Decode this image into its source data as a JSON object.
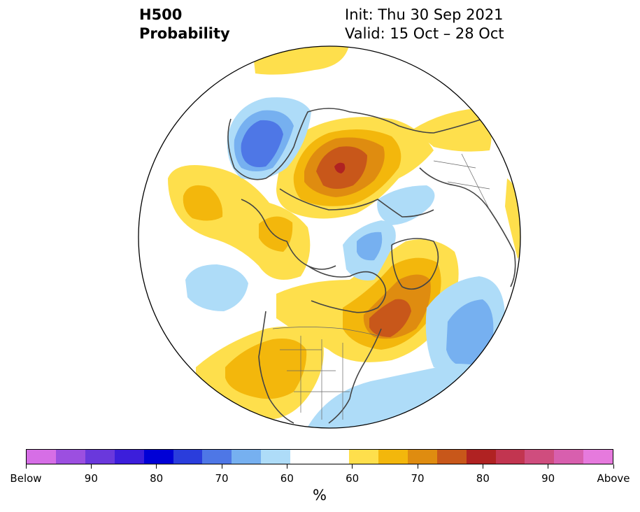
{
  "title": {
    "line1": "H500",
    "line2": "Probability",
    "init": "Init: Thu 30 Sep 2021",
    "valid": "Valid: 15 Oct – 28 Oct"
  },
  "colorbar": {
    "colors": [
      "#d66ee6",
      "#9c4fe0",
      "#6a38dc",
      "#3c1edb",
      "#0000d6",
      "#2a3ddc",
      "#4e77e6",
      "#76b0f0",
      "#aedcf8",
      "#ffffff",
      "#ffffff",
      "#fedf4c",
      "#f3b70c",
      "#df8c10",
      "#c8571a",
      "#b02222",
      "#c23550",
      "#cf4d7e",
      "#d85fae",
      "#e67add"
    ],
    "labels": [
      "Below",
      "90",
      "80",
      "70",
      "60",
      "60",
      "70",
      "80",
      "90",
      "Above"
    ],
    "units": "%"
  },
  "palette": {
    "lightblue": "#aedcf8",
    "blue": "#76b0f0",
    "midblue": "#4e77e6",
    "yellow": "#fedf4c",
    "gold": "#f3b70c",
    "orange": "#df8c10",
    "darkorange": "#c8571a",
    "red": "#b02222"
  }
}
